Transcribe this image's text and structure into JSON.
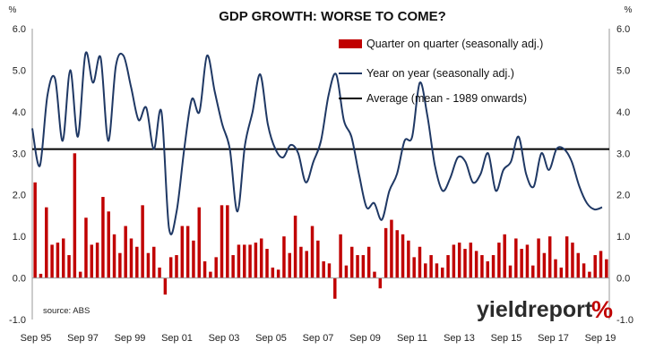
{
  "chart_data": {
    "type": "bar+line",
    "title": "GDP GROWTH: WORSE TO COME?",
    "y_unit_left": "%",
    "y_unit_right": "%",
    "ylim": [
      -1.0,
      6.0
    ],
    "y_ticks": [
      "6.0",
      "5.0",
      "4.0",
      "3.0",
      "2.0",
      "1.0",
      "0.0",
      "-1.0"
    ],
    "x_tick_labels": [
      "Sep 95",
      "Sep 97",
      "Sep 99",
      "Sep 01",
      "Sep 03",
      "Sep 05",
      "Sep 07",
      "Sep 09",
      "Sep 11",
      "Sep 13",
      "Sep 15",
      "Sep 17",
      "Sep 19"
    ],
    "source": "source: ABS",
    "logo": {
      "text": "yieldreport",
      "mark": "%"
    },
    "colors": {
      "bar": "#c00000",
      "line": "#1f3864",
      "average": "#000000"
    },
    "series": [
      {
        "name": "Quarter on quarter (seasonally adj.)",
        "type": "bar",
        "values": [
          2.3,
          0.1,
          1.7,
          0.8,
          0.85,
          0.95,
          0.55,
          3.0,
          0.15,
          1.45,
          0.8,
          0.85,
          1.95,
          1.6,
          1.05,
          0.6,
          1.25,
          0.95,
          0.75,
          1.75,
          0.6,
          0.75,
          0.25,
          -0.4,
          0.5,
          0.55,
          1.25,
          1.25,
          0.9,
          1.7,
          0.4,
          0.15,
          0.5,
          1.75,
          1.75,
          0.55,
          0.8,
          0.8,
          0.8,
          0.85,
          0.95,
          0.7,
          0.25,
          0.2,
          1.0,
          0.6,
          1.5,
          0.75,
          0.65,
          1.25,
          0.9,
          0.4,
          0.35,
          -0.5,
          1.05,
          0.3,
          0.75,
          0.55,
          0.55,
          0.75,
          0.15,
          -0.25,
          1.2,
          1.4,
          1.15,
          1.05,
          0.9,
          0.5,
          0.75,
          0.35,
          0.55,
          0.35,
          0.25,
          0.55,
          0.8,
          0.85,
          0.7,
          0.85,
          0.65,
          0.55,
          0.4,
          0.55,
          0.85,
          1.05,
          0.3,
          0.95,
          0.7,
          0.8,
          0.3,
          0.95,
          0.6,
          1.0,
          0.45,
          0.25,
          1.0,
          0.85,
          0.6,
          0.35,
          0.15,
          0.55,
          0.65,
          0.45
        ]
      },
      {
        "name": "Year on year (seasonally adj.)",
        "type": "line",
        "values": [
          3.6,
          2.7,
          4.4,
          4.8,
          3.3,
          5.0,
          3.4,
          5.4,
          4.7,
          5.3,
          3.3,
          5.1,
          5.35,
          4.6,
          3.8,
          4.1,
          3.1,
          4.0,
          1.2,
          1.6,
          3.1,
          4.3,
          4.0,
          5.35,
          4.5,
          3.7,
          3.1,
          1.6,
          3.2,
          4.0,
          4.9,
          3.7,
          3.1,
          2.9,
          3.2,
          3.0,
          2.3,
          2.8,
          3.3,
          4.4,
          4.9,
          3.8,
          3.4,
          2.5,
          1.7,
          1.8,
          1.4,
          2.1,
          2.5,
          3.3,
          3.4,
          4.7,
          3.9,
          2.7,
          2.1,
          2.4,
          2.9,
          2.8,
          2.3,
          2.5,
          3.0,
          2.1,
          2.6,
          2.8,
          3.4,
          2.5,
          2.2,
          3.0,
          2.6,
          3.1,
          3.1,
          2.8,
          2.2,
          1.8,
          1.65,
          1.7
        ]
      },
      {
        "name": "Average (mean - 1989 onwards)",
        "type": "line",
        "value": 3.1
      }
    ]
  }
}
